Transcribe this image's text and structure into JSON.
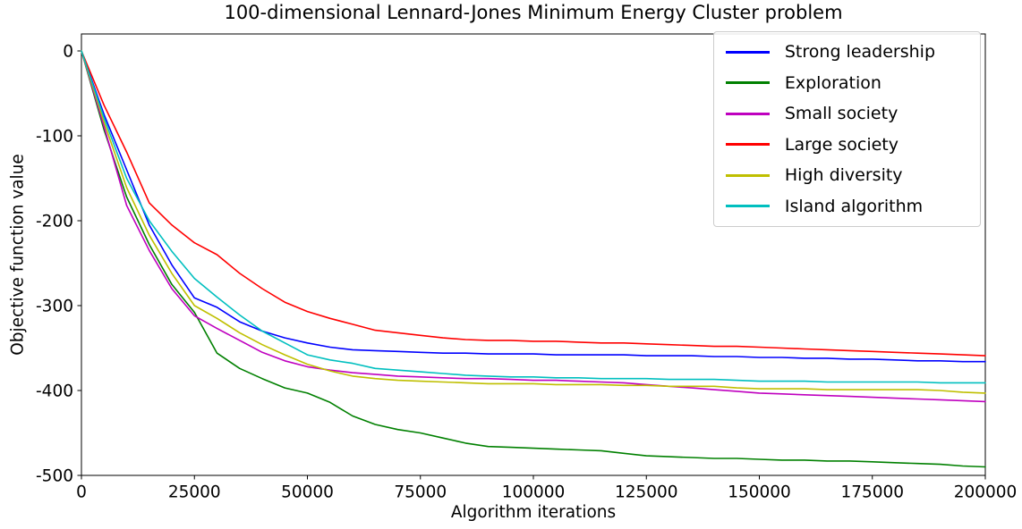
{
  "chart_data": {
    "type": "line",
    "title": "100-dimensional Lennard-Jones Minimum Energy Cluster problem",
    "xlabel": "Algorithm iterations",
    "ylabel": "Objective function value",
    "xlim": [
      0,
      200000
    ],
    "ylim": [
      -500,
      20
    ],
    "x_ticks": [
      0,
      25000,
      50000,
      75000,
      100000,
      125000,
      150000,
      175000,
      200000
    ],
    "x_tick_labels": [
      "0",
      "25000",
      "50000",
      "75000",
      "100000",
      "125000",
      "150000",
      "175000",
      "200000"
    ],
    "y_ticks": [
      0,
      -100,
      -200,
      -300,
      -400,
      -500
    ],
    "y_tick_labels": [
      "0",
      "-100",
      "-200",
      "-300",
      "-400",
      "-500"
    ],
    "grid": false,
    "legend_position": "upper right",
    "axis_color": "#000000",
    "background_color": "#FFFFFF",
    "legend_border_color": "#CCCCCC",
    "x": [
      0,
      5000,
      10000,
      15000,
      20000,
      25000,
      30000,
      35000,
      40000,
      45000,
      50000,
      55000,
      60000,
      65000,
      70000,
      75000,
      80000,
      85000,
      90000,
      95000,
      100000,
      105000,
      110000,
      115000,
      120000,
      125000,
      130000,
      135000,
      140000,
      145000,
      150000,
      155000,
      160000,
      165000,
      170000,
      175000,
      180000,
      185000,
      190000,
      195000,
      200000
    ],
    "series": [
      {
        "name": "Strong leadership",
        "color": "#0000FF",
        "values": [
          0,
          -75,
          -140,
          -205,
          -252,
          -291,
          -302,
          -319,
          -330,
          -338,
          -344,
          -349,
          -352,
          -353,
          -354,
          -355,
          -356,
          -356,
          -357,
          -357,
          -357,
          -358,
          -358,
          -358,
          -358,
          -359,
          -359,
          -359,
          -360,
          -360,
          -361,
          -361,
          -362,
          -362,
          -363,
          -363,
          -364,
          -365,
          -365,
          -366,
          -366
        ]
      },
      {
        "name": "Exploration",
        "color": "#008000",
        "values": [
          0,
          -93,
          -172,
          -228,
          -275,
          -308,
          -356,
          -374,
          -386,
          -397,
          -403,
          -414,
          -430,
          -440,
          -446,
          -450,
          -456,
          -462,
          -466,
          -467,
          -468,
          -469,
          -470,
          -471,
          -474,
          -477,
          -478,
          -479,
          -480,
          -480,
          -481,
          -482,
          -482,
          -483,
          -483,
          -484,
          -485,
          -486,
          -487,
          -489,
          -490
        ]
      },
      {
        "name": "Small society",
        "color": "#BF00BF",
        "values": [
          0,
          -89,
          -182,
          -235,
          -280,
          -312,
          -327,
          -341,
          -355,
          -365,
          -372,
          -376,
          -379,
          -381,
          -383,
          -384,
          -385,
          -386,
          -386,
          -387,
          -388,
          -388,
          -389,
          -390,
          -391,
          -393,
          -395,
          -397,
          -399,
          -401,
          -403,
          -404,
          -405,
          -406,
          -407,
          -408,
          -409,
          -410,
          -411,
          -412,
          -413
        ]
      },
      {
        "name": "Large society",
        "color": "#FF0000",
        "values": [
          0,
          -64,
          -119,
          -179,
          -205,
          -226,
          -240,
          -262,
          -280,
          -296,
          -307,
          -315,
          -322,
          -329,
          -332,
          -335,
          -338,
          -340,
          -341,
          -341,
          -342,
          -342,
          -343,
          -344,
          -344,
          -345,
          -346,
          -347,
          -348,
          -348,
          -349,
          -350,
          -351,
          -352,
          -353,
          -354,
          -355,
          -356,
          -357,
          -358,
          -359
        ]
      },
      {
        "name": "High diversity",
        "color": "#BFBF00",
        "values": [
          0,
          -84,
          -161,
          -217,
          -262,
          -300,
          -315,
          -332,
          -346,
          -358,
          -369,
          -377,
          -383,
          -386,
          -388,
          -389,
          -390,
          -391,
          -392,
          -392,
          -392,
          -393,
          -393,
          -393,
          -394,
          -394,
          -395,
          -395,
          -395,
          -397,
          -398,
          -398,
          -398,
          -399,
          -399,
          -399,
          -399,
          -399,
          -400,
          -402,
          -403
        ]
      },
      {
        "name": "Island algorithm",
        "color": "#00BFBF",
        "values": [
          0,
          -79,
          -150,
          -200,
          -236,
          -268,
          -290,
          -311,
          -330,
          -344,
          -358,
          -364,
          -368,
          -374,
          -376,
          -378,
          -380,
          -382,
          -383,
          -384,
          -384,
          -385,
          -385,
          -386,
          -386,
          -386,
          -387,
          -387,
          -387,
          -388,
          -389,
          -389,
          -389,
          -390,
          -390,
          -390,
          -390,
          -390,
          -391,
          -391,
          -391
        ]
      }
    ]
  }
}
